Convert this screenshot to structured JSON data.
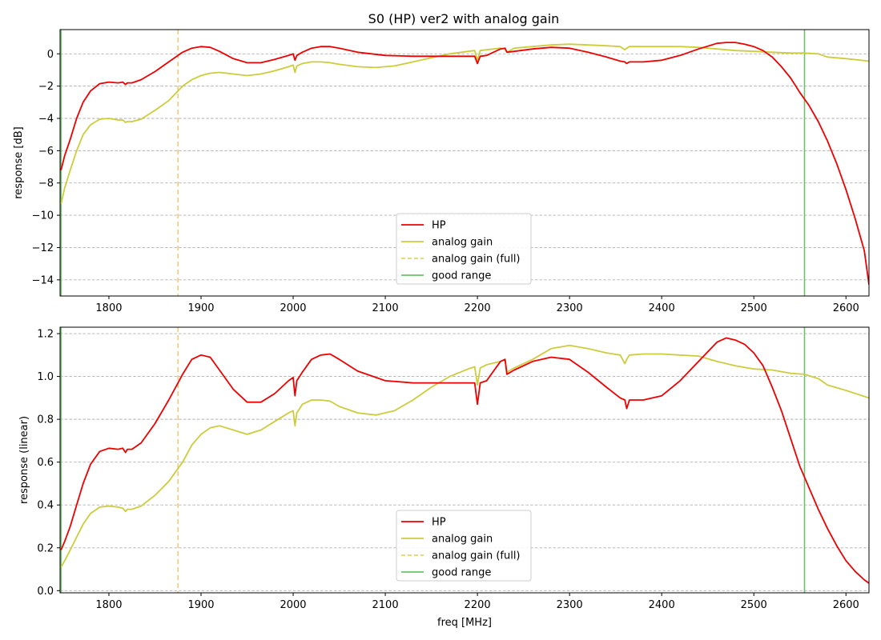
{
  "figure": {
    "title": "S0 (HP)   ver2   with analog gain"
  },
  "chart_data": [
    {
      "type": "line",
      "title": "S0 (HP)   ver2   with analog gain",
      "xlabel": "",
      "ylabel": "response [dB]",
      "xlim": [
        1747,
        2625
      ],
      "ylim": [
        -15,
        1.5
      ],
      "xticks": [
        1800,
        1900,
        2000,
        2100,
        2200,
        2300,
        2400,
        2500,
        2600
      ],
      "yticks": [
        0,
        -2,
        -4,
        -6,
        -8,
        -10,
        -12,
        -14
      ],
      "grid": "horizontal dashed",
      "legend": {
        "position": "lower center",
        "entries": [
          "HP",
          "analog gain",
          "analog gain (full)",
          "good range"
        ]
      },
      "vlines": [
        {
          "name": "analog gain (full)",
          "x": 1875,
          "style": "dashed",
          "color": "#f5c97a"
        },
        {
          "name": "good range",
          "x": 1748,
          "style": "solid",
          "color": "#6cc36c"
        },
        {
          "name": "good range",
          "x": 2555,
          "style": "solid",
          "color": "#6cc36c"
        }
      ],
      "series": [
        {
          "name": "HP",
          "color": "#ee0000",
          "x": [
            1748,
            1752,
            1758,
            1765,
            1772,
            1780,
            1790,
            1800,
            1810,
            1815,
            1818,
            1820,
            1825,
            1835,
            1850,
            1865,
            1880,
            1890,
            1900,
            1910,
            1920,
            1935,
            1950,
            1965,
            1980,
            1995,
            2000,
            2002,
            2004,
            2010,
            2020,
            2030,
            2040,
            2050,
            2070,
            2100,
            2130,
            2160,
            2190,
            2197,
            2200,
            2203,
            2210,
            2225,
            2230,
            2232,
            2240,
            2260,
            2280,
            2300,
            2320,
            2340,
            2355,
            2360,
            2362,
            2365,
            2380,
            2400,
            2420,
            2440,
            2460,
            2470,
            2480,
            2490,
            2500,
            2510,
            2520,
            2530,
            2540,
            2550,
            2560,
            2570,
            2580,
            2590,
            2600,
            2610,
            2620,
            2625
          ],
          "values": [
            -7.2,
            -6.3,
            -5.3,
            -4.0,
            -3.0,
            -2.3,
            -1.85,
            -1.75,
            -1.8,
            -1.75,
            -1.9,
            -1.8,
            -1.8,
            -1.6,
            -1.1,
            -0.5,
            0.1,
            0.35,
            0.45,
            0.4,
            0.15,
            -0.3,
            -0.55,
            -0.55,
            -0.35,
            -0.1,
            0.0,
            -0.4,
            -0.1,
            0.1,
            0.35,
            0.45,
            0.45,
            0.35,
            0.1,
            -0.1,
            -0.15,
            -0.15,
            -0.15,
            -0.15,
            -0.6,
            -0.15,
            -0.1,
            0.3,
            0.35,
            0.1,
            0.15,
            0.3,
            0.4,
            0.35,
            0.1,
            -0.2,
            -0.45,
            -0.5,
            -0.6,
            -0.5,
            -0.5,
            -0.4,
            -0.1,
            0.3,
            0.65,
            0.7,
            0.7,
            0.6,
            0.45,
            0.2,
            -0.2,
            -0.8,
            -1.5,
            -2.4,
            -3.2,
            -4.2,
            -5.4,
            -6.8,
            -8.4,
            -10.2,
            -12.2,
            -14.3
          ]
        },
        {
          "name": "analog gain",
          "color": "#cccc3c",
          "x": [
            1748,
            1752,
            1758,
            1765,
            1772,
            1780,
            1790,
            1800,
            1810,
            1815,
            1818,
            1820,
            1825,
            1835,
            1850,
            1865,
            1880,
            1890,
            1900,
            1910,
            1920,
            1935,
            1950,
            1965,
            1980,
            1995,
            2000,
            2002,
            2004,
            2010,
            2020,
            2030,
            2040,
            2050,
            2070,
            2090,
            2110,
            2130,
            2150,
            2170,
            2190,
            2197,
            2200,
            2203,
            2210,
            2225,
            2230,
            2232,
            2240,
            2260,
            2280,
            2300,
            2320,
            2340,
            2355,
            2360,
            2362,
            2365,
            2380,
            2400,
            2420,
            2440,
            2460,
            2480,
            2500,
            2520,
            2540,
            2555,
            2570,
            2580,
            2600,
            2625
          ],
          "values": [
            -9.3,
            -8.3,
            -7.2,
            -6.0,
            -5.0,
            -4.4,
            -4.05,
            -4.0,
            -4.1,
            -4.1,
            -4.25,
            -4.2,
            -4.2,
            -4.05,
            -3.5,
            -2.9,
            -2.0,
            -1.6,
            -1.35,
            -1.2,
            -1.15,
            -1.25,
            -1.35,
            -1.25,
            -1.05,
            -0.8,
            -0.7,
            -1.15,
            -0.75,
            -0.6,
            -0.5,
            -0.5,
            -0.55,
            -0.65,
            -0.8,
            -0.85,
            -0.75,
            -0.5,
            -0.25,
            0.0,
            0.15,
            0.2,
            -0.4,
            0.2,
            0.25,
            0.35,
            0.3,
            0.1,
            0.35,
            0.45,
            0.55,
            0.6,
            0.55,
            0.5,
            0.45,
            0.25,
            0.35,
            0.45,
            0.45,
            0.45,
            0.45,
            0.4,
            0.3,
            0.2,
            0.15,
            0.1,
            0.05,
            0.05,
            0.0,
            -0.2,
            -0.3,
            -0.45
          ]
        }
      ]
    },
    {
      "type": "line",
      "title": "",
      "xlabel": "freq [MHz]",
      "ylabel": "response (linear)",
      "xlim": [
        1747,
        2625
      ],
      "ylim": [
        -0.01,
        1.23
      ],
      "xticks": [
        1800,
        1900,
        2000,
        2100,
        2200,
        2300,
        2400,
        2500,
        2600
      ],
      "yticks": [
        0.0,
        0.2,
        0.4,
        0.6,
        0.8,
        1.0,
        1.2
      ],
      "grid": "horizontal dashed",
      "legend": {
        "position": "lower center",
        "entries": [
          "HP",
          "analog gain",
          "analog gain (full)",
          "good range"
        ]
      },
      "vlines": [
        {
          "name": "analog gain (full)",
          "x": 1875,
          "style": "dashed",
          "color": "#f5c97a"
        },
        {
          "name": "good range",
          "x": 1748,
          "style": "solid",
          "color": "#6cc36c"
        },
        {
          "name": "good range",
          "x": 2555,
          "style": "solid",
          "color": "#6cc36c"
        }
      ],
      "series": [
        {
          "name": "HP",
          "color": "#ee0000",
          "x": [
            1748,
            1752,
            1758,
            1765,
            1772,
            1780,
            1790,
            1800,
            1810,
            1815,
            1818,
            1820,
            1825,
            1835,
            1850,
            1865,
            1880,
            1890,
            1900,
            1910,
            1920,
            1935,
            1950,
            1965,
            1980,
            1995,
            2000,
            2002,
            2004,
            2010,
            2020,
            2030,
            2040,
            2050,
            2070,
            2100,
            2130,
            2160,
            2190,
            2197,
            2200,
            2203,
            2210,
            2225,
            2230,
            2232,
            2240,
            2260,
            2280,
            2300,
            2320,
            2340,
            2355,
            2360,
            2362,
            2365,
            2380,
            2400,
            2420,
            2440,
            2460,
            2470,
            2480,
            2490,
            2500,
            2510,
            2520,
            2530,
            2540,
            2550,
            2560,
            2570,
            2580,
            2590,
            2600,
            2610,
            2620,
            2625
          ],
          "values": [
            0.19,
            0.23,
            0.3,
            0.4,
            0.5,
            0.59,
            0.65,
            0.665,
            0.66,
            0.665,
            0.645,
            0.66,
            0.66,
            0.69,
            0.78,
            0.89,
            1.01,
            1.08,
            1.1,
            1.09,
            1.03,
            0.94,
            0.88,
            0.88,
            0.92,
            0.98,
            0.995,
            0.91,
            0.98,
            1.02,
            1.08,
            1.1,
            1.105,
            1.08,
            1.025,
            0.98,
            0.97,
            0.97,
            0.97,
            0.97,
            0.87,
            0.97,
            0.98,
            1.07,
            1.08,
            1.01,
            1.03,
            1.07,
            1.09,
            1.08,
            1.02,
            0.95,
            0.9,
            0.89,
            0.85,
            0.89,
            0.89,
            0.91,
            0.98,
            1.07,
            1.16,
            1.18,
            1.17,
            1.15,
            1.11,
            1.05,
            0.95,
            0.84,
            0.71,
            0.58,
            0.48,
            0.38,
            0.29,
            0.21,
            0.14,
            0.09,
            0.05,
            0.035
          ]
        },
        {
          "name": "analog gain",
          "color": "#cccc3c",
          "x": [
            1748,
            1752,
            1758,
            1765,
            1772,
            1780,
            1790,
            1800,
            1810,
            1815,
            1818,
            1820,
            1825,
            1835,
            1850,
            1865,
            1880,
            1890,
            1900,
            1910,
            1920,
            1935,
            1950,
            1965,
            1980,
            1995,
            2000,
            2002,
            2004,
            2010,
            2020,
            2030,
            2040,
            2050,
            2070,
            2090,
            2110,
            2130,
            2150,
            2170,
            2190,
            2197,
            2200,
            2203,
            2210,
            2225,
            2230,
            2232,
            2240,
            2260,
            2280,
            2300,
            2320,
            2340,
            2355,
            2360,
            2362,
            2365,
            2380,
            2400,
            2420,
            2440,
            2460,
            2480,
            2500,
            2520,
            2540,
            2555,
            2570,
            2580,
            2600,
            2625
          ],
          "values": [
            0.11,
            0.14,
            0.19,
            0.25,
            0.31,
            0.36,
            0.39,
            0.395,
            0.39,
            0.385,
            0.37,
            0.38,
            0.38,
            0.395,
            0.445,
            0.51,
            0.6,
            0.68,
            0.73,
            0.76,
            0.77,
            0.75,
            0.73,
            0.75,
            0.79,
            0.83,
            0.84,
            0.77,
            0.83,
            0.87,
            0.89,
            0.89,
            0.885,
            0.86,
            0.83,
            0.82,
            0.84,
            0.89,
            0.95,
            1.0,
            1.035,
            1.045,
            0.96,
            1.04,
            1.055,
            1.07,
            1.08,
            1.02,
            1.04,
            1.08,
            1.13,
            1.145,
            1.13,
            1.11,
            1.1,
            1.06,
            1.08,
            1.1,
            1.105,
            1.105,
            1.1,
            1.095,
            1.07,
            1.05,
            1.035,
            1.03,
            1.015,
            1.01,
            0.99,
            0.96,
            0.935,
            0.9
          ]
        }
      ]
    }
  ]
}
